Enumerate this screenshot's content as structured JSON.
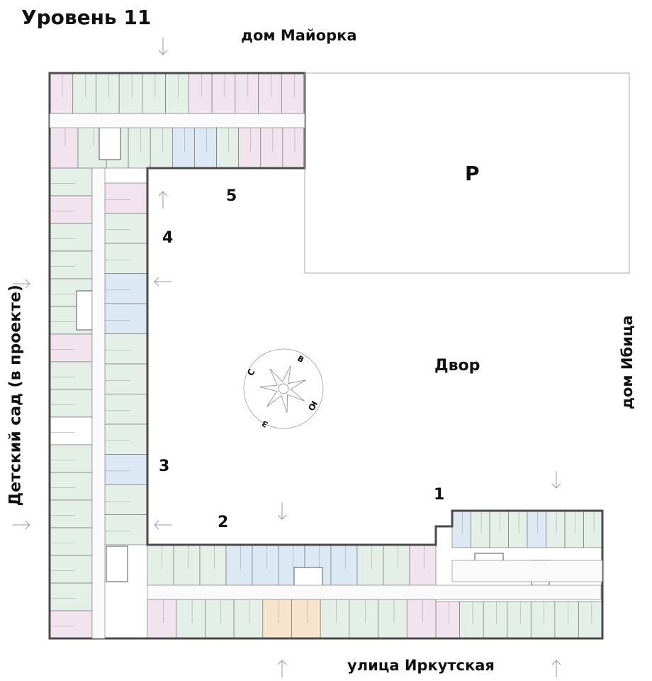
{
  "title": "Уровень 11",
  "labels": {
    "north_house": "дом Майорка",
    "east_house": "дом Ибица",
    "west": "Детский сад (в проекте)",
    "south_street": "улица Иркутская",
    "courtyard": "Двор",
    "parking": "P"
  },
  "sections": [
    "1",
    "2",
    "3",
    "4",
    "5"
  ],
  "compass": {
    "n": "С",
    "e": "В",
    "s": "Ю",
    "w": "З"
  },
  "colors": {
    "wall": "#4a4a4a",
    "unit_green": "#e3efe7",
    "unit_pink": "#f2e4ee",
    "unit_blue": "#dce9f5",
    "unit_orange": "#f8e3cd",
    "corridor": "#ffffff",
    "arrow": "#9a9a9a"
  }
}
